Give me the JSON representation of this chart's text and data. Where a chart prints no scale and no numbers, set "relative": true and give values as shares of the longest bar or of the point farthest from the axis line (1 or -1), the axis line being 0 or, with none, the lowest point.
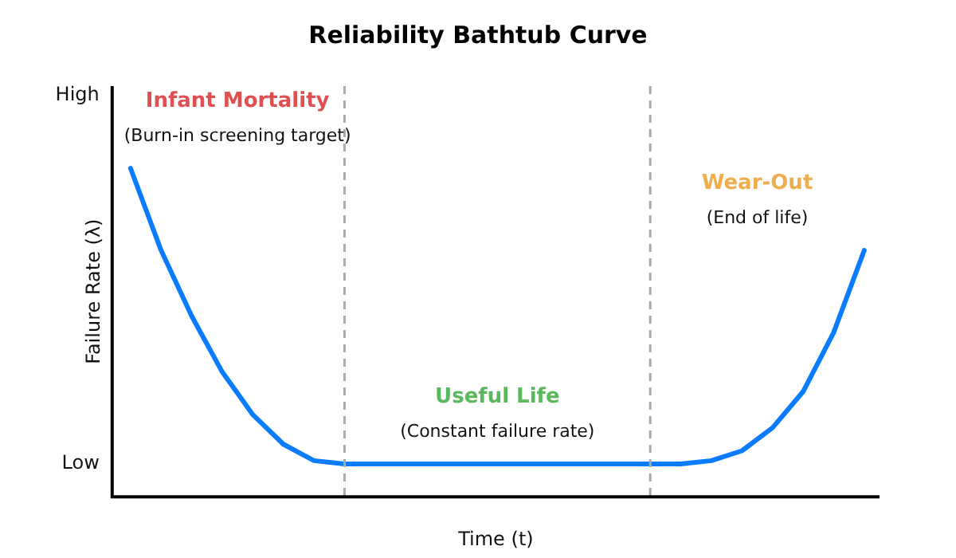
{
  "chart_data": {
    "type": "line",
    "title": "Reliability Bathtub Curve",
    "xlabel": "Time (t)",
    "ylabel": "Failure Rate (λ)",
    "categories": [
      null,
      null,
      null,
      null,
      null,
      null,
      null,
      null,
      null,
      null,
      null,
      null,
      null,
      null,
      null,
      null,
      null,
      null,
      null,
      null,
      null,
      null,
      null,
      null,
      null
    ],
    "relative": true,
    "grid": false,
    "legend": false,
    "marker": "none",
    "line_style": "solid",
    "series": [
      {
        "color": "#0a7cff",
        "values": [
          1,
          0.75,
          0.55,
          0.38,
          0.25,
          0.16,
          0.11,
          0.1,
          0.1,
          0.1,
          0.1,
          0.1,
          0.1,
          0.1,
          0.1,
          0.1,
          0.1,
          0.1,
          0.1,
          0.11,
          0.14,
          0.21,
          0.32,
          0.5,
          0.75
        ]
      }
    ],
    "annotations": [
      "High",
      "Low",
      "Infant Mortality",
      "(Burn-in screening target)",
      "Useful Life",
      "(Constant failure rate)",
      "Wear-Out",
      "(End of life)"
    ]
  }
}
